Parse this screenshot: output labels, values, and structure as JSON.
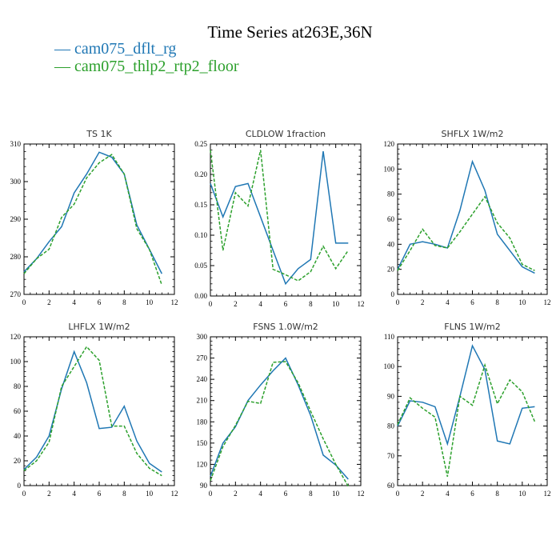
{
  "title": "Time Series at263E,36N",
  "legend": [
    {
      "label": "— cam075_dflt_rg",
      "color": "#1f77b4"
    },
    {
      "label": "— cam075_thlp2_rtp2_floor",
      "color": "#2ca02c"
    }
  ],
  "chart_data": [
    {
      "type": "line",
      "title": "TS   1K",
      "x": [
        0,
        1,
        2,
        3,
        4,
        5,
        6,
        7,
        8,
        9,
        10,
        11
      ],
      "xlim": [
        0,
        12
      ],
      "xticks": [
        0,
        2,
        4,
        6,
        8,
        10,
        12
      ],
      "ylim": [
        270,
        310
      ],
      "yticks": [
        270,
        280,
        290,
        300,
        310
      ],
      "series": [
        {
          "name": "cam075_dflt_rg",
          "color": "#1f77b4",
          "dash": "",
          "values": [
            276,
            279.5,
            284,
            288,
            297,
            302,
            307.8,
            306.5,
            302,
            288.5,
            282,
            275.5
          ]
        },
        {
          "name": "cam075_thlp2_rtp2_floor",
          "color": "#2ca02c",
          "dash": "4,2",
          "values": [
            275.5,
            279.5,
            282,
            290.5,
            294,
            301,
            305,
            307.2,
            302,
            287.5,
            282,
            272.5
          ]
        }
      ]
    },
    {
      "type": "line",
      "title": "CLDLOW   1fraction",
      "x": [
        0,
        1,
        2,
        3,
        4,
        5,
        6,
        7,
        8,
        9,
        10,
        11
      ],
      "xlim": [
        0,
        12
      ],
      "xticks": [
        0,
        2,
        4,
        6,
        8,
        10,
        12
      ],
      "ylim": [
        0,
        0.25
      ],
      "yticks": [
        0,
        0.05,
        0.1,
        0.15,
        0.2,
        0.25
      ],
      "ytick_labels": [
        "0.00",
        "0.05",
        "0.10",
        "0.15",
        "0.20",
        "0.25"
      ],
      "series": [
        {
          "name": "cam075_dflt_rg",
          "color": "#1f77b4",
          "dash": "",
          "values": [
            0.185,
            0.13,
            0.18,
            0.185,
            0.13,
            0.075,
            0.02,
            0.045,
            0.06,
            0.238,
            0.087,
            0.087
          ]
        },
        {
          "name": "cam075_thlp2_rtp2_floor",
          "color": "#2ca02c",
          "dash": "4,2",
          "values": [
            0.24,
            0.075,
            0.17,
            0.148,
            0.24,
            0.044,
            0.035,
            0.025,
            0.04,
            0.082,
            0.045,
            0.075
          ]
        }
      ]
    },
    {
      "type": "line",
      "title": "SHFLX   1W/m2",
      "x": [
        0,
        1,
        2,
        3,
        4,
        5,
        6,
        7,
        8,
        9,
        10,
        11
      ],
      "xlim": [
        0,
        12
      ],
      "xticks": [
        0,
        2,
        4,
        6,
        8,
        10,
        12
      ],
      "ylim": [
        0,
        120
      ],
      "yticks": [
        0,
        20,
        40,
        60,
        80,
        100,
        120
      ],
      "series": [
        {
          "name": "cam075_dflt_rg",
          "color": "#1f77b4",
          "dash": "",
          "values": [
            20,
            40,
            42,
            40,
            37,
            67,
            106,
            83,
            48,
            35,
            22,
            17
          ]
        },
        {
          "name": "cam075_thlp2_rtp2_floor",
          "color": "#2ca02c",
          "dash": "4,2",
          "values": [
            19,
            35,
            52,
            39,
            37,
            50,
            64,
            78,
            57,
            45,
            24,
            19
          ]
        }
      ]
    },
    {
      "type": "line",
      "title": "LHFLX   1W/m2",
      "x": [
        0,
        1,
        2,
        3,
        4,
        5,
        6,
        7,
        8,
        9,
        10,
        11
      ],
      "xlim": [
        0,
        12
      ],
      "xticks": [
        0,
        2,
        4,
        6,
        8,
        10,
        12
      ],
      "ylim": [
        0,
        120
      ],
      "yticks": [
        0,
        20,
        40,
        60,
        80,
        100,
        120
      ],
      "series": [
        {
          "name": "cam075_dflt_rg",
          "color": "#1f77b4",
          "dash": "",
          "values": [
            13,
            23,
            40,
            78,
            108,
            83,
            46,
            47,
            64,
            36,
            18,
            11
          ]
        },
        {
          "name": "cam075_thlp2_rtp2_floor",
          "color": "#2ca02c",
          "dash": "4,2",
          "values": [
            12,
            20,
            35,
            80,
            96,
            112,
            101,
            48,
            48,
            26,
            14,
            8
          ]
        }
      ]
    },
    {
      "type": "line",
      "title": "FSNS   1.0W/m2",
      "x": [
        0,
        1,
        2,
        3,
        4,
        5,
        6,
        7,
        8,
        9,
        10,
        11
      ],
      "xlim": [
        0,
        12
      ],
      "xticks": [
        0,
        2,
        4,
        6,
        8,
        10,
        12
      ],
      "ylim": [
        90,
        300
      ],
      "yticks": [
        90,
        120,
        150,
        180,
        210,
        240,
        270,
        300
      ],
      "series": [
        {
          "name": "cam075_dflt_rg",
          "color": "#1f77b4",
          "dash": "",
          "values": [
            103,
            150,
            173,
            210,
            232,
            252,
            270,
            232,
            189,
            133,
            119,
            99
          ]
        },
        {
          "name": "cam075_thlp2_rtp2_floor",
          "color": "#2ca02c",
          "dash": "4,2",
          "values": [
            97,
            145,
            175,
            209,
            206,
            264,
            265,
            235,
            195,
            156,
            120,
            89
          ]
        }
      ]
    },
    {
      "type": "line",
      "title": "FLNS   1W/m2",
      "x": [
        0,
        1,
        2,
        3,
        4,
        5,
        6,
        7,
        8,
        9,
        10,
        11
      ],
      "xlim": [
        0,
        12
      ],
      "xticks": [
        0,
        2,
        4,
        6,
        8,
        10,
        12
      ],
      "ylim": [
        60,
        110
      ],
      "yticks": [
        60,
        70,
        80,
        90,
        100,
        110
      ],
      "series": [
        {
          "name": "cam075_dflt_rg",
          "color": "#1f77b4",
          "dash": "",
          "values": [
            80,
            88.5,
            88,
            86.5,
            74,
            90,
            107,
            99,
            75,
            74,
            86,
            86.5
          ]
        },
        {
          "name": "cam075_thlp2_rtp2_floor",
          "color": "#2ca02c",
          "dash": "4,2",
          "values": [
            80.5,
            89.5,
            86,
            83,
            63,
            90,
            87,
            100.5,
            87.5,
            95.5,
            91.5,
            81.5
          ]
        }
      ]
    }
  ]
}
